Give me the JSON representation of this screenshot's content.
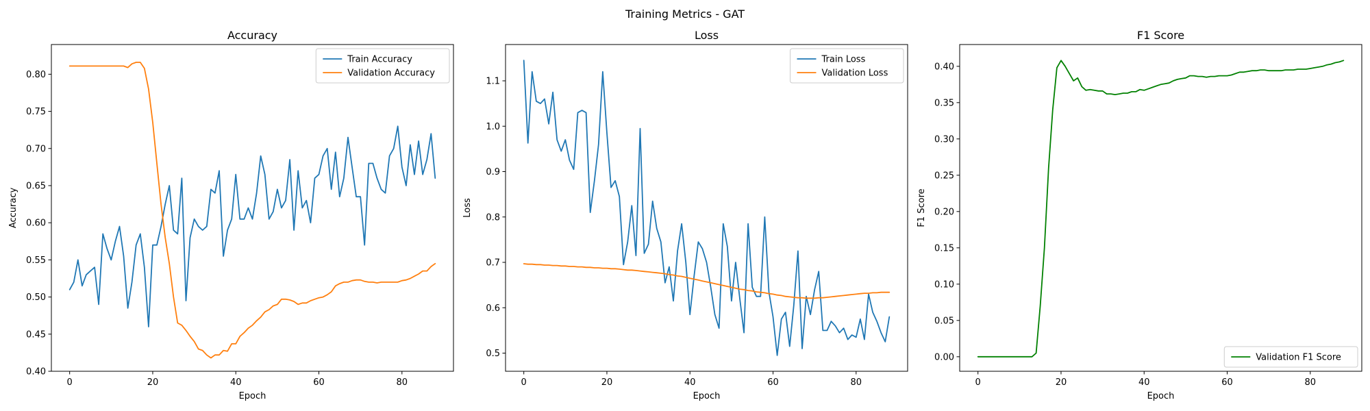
{
  "figure": {
    "title": "Training Metrics - GAT"
  },
  "chart_data": [
    {
      "type": "line",
      "title": "Accuracy",
      "xlabel": "Epoch",
      "ylabel": "Accuracy",
      "xlim": [
        -4.4,
        92.4
      ],
      "ylim": [
        0.4,
        0.84
      ],
      "xticks": [
        0,
        20,
        40,
        60,
        80
      ],
      "yticks": [
        0.4,
        0.45,
        0.5,
        0.55,
        0.6,
        0.65,
        0.7,
        0.75,
        0.8
      ],
      "ytick_decimals": 2,
      "legend_loc": "upper right",
      "series": [
        {
          "name": "Train Accuracy",
          "color": "#1f77b4",
          "x": [
            0,
            1,
            2,
            3,
            4,
            5,
            6,
            7,
            8,
            9,
            10,
            11,
            12,
            13,
            14,
            15,
            16,
            17,
            18,
            19,
            20,
            21,
            22,
            23,
            24,
            25,
            26,
            27,
            28,
            29,
            30,
            31,
            32,
            33,
            34,
            35,
            36,
            37,
            38,
            39,
            40,
            41,
            42,
            43,
            44,
            45,
            46,
            47,
            48,
            49,
            50,
            51,
            52,
            53,
            54,
            55,
            56,
            57,
            58,
            59,
            60,
            61,
            62,
            63,
            64,
            65,
            66,
            67,
            68,
            69,
            70,
            71,
            72,
            73,
            74,
            75,
            76,
            77,
            78,
            79,
            80,
            81,
            82,
            83,
            84,
            85,
            86,
            87,
            88
          ],
          "values": [
            0.51,
            0.52,
            0.55,
            0.515,
            0.53,
            0.535,
            0.54,
            0.49,
            0.585,
            0.565,
            0.55,
            0.575,
            0.595,
            0.555,
            0.485,
            0.52,
            0.57,
            0.585,
            0.54,
            0.46,
            0.57,
            0.57,
            0.595,
            0.625,
            0.65,
            0.59,
            0.585,
            0.66,
            0.495,
            0.58,
            0.605,
            0.595,
            0.59,
            0.595,
            0.645,
            0.64,
            0.67,
            0.555,
            0.59,
            0.605,
            0.665,
            0.605,
            0.605,
            0.62,
            0.605,
            0.64,
            0.69,
            0.665,
            0.605,
            0.615,
            0.645,
            0.62,
            0.63,
            0.685,
            0.59,
            0.67,
            0.62,
            0.63,
            0.6,
            0.66,
            0.665,
            0.69,
            0.7,
            0.645,
            0.695,
            0.635,
            0.66,
            0.715,
            0.675,
            0.635,
            0.635,
            0.57,
            0.68,
            0.68,
            0.66,
            0.645,
            0.64,
            0.69,
            0.7,
            0.73,
            0.675,
            0.65,
            0.705,
            0.665,
            0.71,
            0.665,
            0.685,
            0.72,
            0.66
          ]
        },
        {
          "name": "Validation Accuracy",
          "color": "#ff7f0e",
          "x": [
            0,
            1,
            2,
            3,
            4,
            5,
            6,
            7,
            8,
            9,
            10,
            11,
            12,
            13,
            14,
            15,
            16,
            17,
            18,
            19,
            20,
            21,
            22,
            23,
            24,
            25,
            26,
            27,
            28,
            29,
            30,
            31,
            32,
            33,
            34,
            35,
            36,
            37,
            38,
            39,
            40,
            41,
            42,
            43,
            44,
            45,
            46,
            47,
            48,
            49,
            50,
            51,
            52,
            53,
            54,
            55,
            56,
            57,
            58,
            59,
            60,
            61,
            62,
            63,
            64,
            65,
            66,
            67,
            68,
            69,
            70,
            71,
            72,
            73,
            74,
            75,
            76,
            77,
            78,
            79,
            80,
            81,
            82,
            83,
            84,
            85,
            86,
            87,
            88
          ],
          "values": [
            0.811,
            0.811,
            0.811,
            0.811,
            0.811,
            0.811,
            0.811,
            0.811,
            0.811,
            0.811,
            0.811,
            0.811,
            0.811,
            0.811,
            0.809,
            0.814,
            0.816,
            0.816,
            0.808,
            0.78,
            0.735,
            0.68,
            0.625,
            0.58,
            0.545,
            0.5,
            0.465,
            0.462,
            0.455,
            0.447,
            0.44,
            0.43,
            0.428,
            0.422,
            0.418,
            0.422,
            0.422,
            0.428,
            0.427,
            0.437,
            0.437,
            0.447,
            0.452,
            0.458,
            0.462,
            0.468,
            0.473,
            0.48,
            0.483,
            0.488,
            0.49,
            0.497,
            0.497,
            0.496,
            0.494,
            0.49,
            0.492,
            0.492,
            0.495,
            0.497,
            0.499,
            0.5,
            0.503,
            0.507,
            0.515,
            0.518,
            0.52,
            0.52,
            0.522,
            0.523,
            0.523,
            0.521,
            0.52,
            0.52,
            0.519,
            0.52,
            0.52,
            0.52,
            0.52,
            0.52,
            0.522,
            0.523,
            0.525,
            0.528,
            0.531,
            0.535,
            0.535,
            0.541,
            0.545
          ]
        }
      ]
    },
    {
      "type": "line",
      "title": "Loss",
      "xlabel": "Epoch",
      "ylabel": "Loss",
      "xlim": [
        -4.4,
        92.4
      ],
      "ylim": [
        0.46,
        1.18
      ],
      "xticks": [
        0,
        20,
        40,
        60,
        80
      ],
      "yticks": [
        0.5,
        0.6,
        0.7,
        0.8,
        0.9,
        1.0,
        1.1
      ],
      "ytick_decimals": 1,
      "legend_loc": "upper right",
      "series": [
        {
          "name": "Train Loss",
          "color": "#1f77b4",
          "x": [
            0,
            1,
            2,
            3,
            4,
            5,
            6,
            7,
            8,
            9,
            10,
            11,
            12,
            13,
            14,
            15,
            16,
            17,
            18,
            19,
            20,
            21,
            22,
            23,
            24,
            25,
            26,
            27,
            28,
            29,
            30,
            31,
            32,
            33,
            34,
            35,
            36,
            37,
            38,
            39,
            40,
            41,
            42,
            43,
            44,
            45,
            46,
            47,
            48,
            49,
            50,
            51,
            52,
            53,
            54,
            55,
            56,
            57,
            58,
            59,
            60,
            61,
            62,
            63,
            64,
            65,
            66,
            67,
            68,
            69,
            70,
            71,
            72,
            73,
            74,
            75,
            76,
            77,
            78,
            79,
            80,
            81,
            82,
            83,
            84,
            85,
            86,
            87,
            88
          ],
          "values": [
            1.145,
            0.963,
            1.12,
            1.055,
            1.05,
            1.06,
            1.005,
            1.075,
            0.97,
            0.945,
            0.97,
            0.925,
            0.905,
            1.03,
            1.035,
            1.03,
            0.81,
            0.88,
            0.96,
            1.12,
            0.985,
            0.865,
            0.88,
            0.845,
            0.695,
            0.745,
            0.825,
            0.715,
            0.995,
            0.72,
            0.74,
            0.835,
            0.775,
            0.745,
            0.655,
            0.69,
            0.615,
            0.725,
            0.785,
            0.7,
            0.585,
            0.67,
            0.745,
            0.73,
            0.7,
            0.645,
            0.585,
            0.555,
            0.785,
            0.735,
            0.615,
            0.7,
            0.62,
            0.545,
            0.785,
            0.645,
            0.625,
            0.625,
            0.8,
            0.635,
            0.58,
            0.495,
            0.575,
            0.59,
            0.515,
            0.605,
            0.725,
            0.51,
            0.625,
            0.585,
            0.64,
            0.68,
            0.55,
            0.55,
            0.57,
            0.56,
            0.545,
            0.555,
            0.53,
            0.54,
            0.535,
            0.575,
            0.53,
            0.63,
            0.59,
            0.57,
            0.545,
            0.525,
            0.58
          ]
        },
        {
          "name": "Validation Loss",
          "color": "#ff7f0e",
          "x": [
            0,
            1,
            2,
            3,
            4,
            5,
            6,
            7,
            8,
            9,
            10,
            11,
            12,
            13,
            14,
            15,
            16,
            17,
            18,
            19,
            20,
            21,
            22,
            23,
            24,
            25,
            26,
            27,
            28,
            29,
            30,
            31,
            32,
            33,
            34,
            35,
            36,
            37,
            38,
            39,
            40,
            41,
            42,
            43,
            44,
            45,
            46,
            47,
            48,
            49,
            50,
            51,
            52,
            53,
            54,
            55,
            56,
            57,
            58,
            59,
            60,
            61,
            62,
            63,
            64,
            65,
            66,
            67,
            68,
            69,
            70,
            71,
            72,
            73,
            74,
            75,
            76,
            77,
            78,
            79,
            80,
            81,
            82,
            83,
            84,
            85,
            86,
            87,
            88
          ],
          "values": [
            0.697,
            0.696,
            0.696,
            0.695,
            0.695,
            0.694,
            0.694,
            0.693,
            0.693,
            0.692,
            0.692,
            0.691,
            0.691,
            0.69,
            0.69,
            0.689,
            0.689,
            0.688,
            0.688,
            0.687,
            0.687,
            0.686,
            0.686,
            0.685,
            0.684,
            0.683,
            0.683,
            0.682,
            0.681,
            0.68,
            0.679,
            0.678,
            0.677,
            0.676,
            0.675,
            0.673,
            0.672,
            0.67,
            0.669,
            0.667,
            0.665,
            0.663,
            0.661,
            0.659,
            0.657,
            0.655,
            0.653,
            0.651,
            0.649,
            0.647,
            0.645,
            0.643,
            0.641,
            0.64,
            0.638,
            0.637,
            0.635,
            0.634,
            0.633,
            0.631,
            0.63,
            0.628,
            0.627,
            0.625,
            0.624,
            0.623,
            0.622,
            0.622,
            0.621,
            0.621,
            0.621,
            0.622,
            0.622,
            0.623,
            0.624,
            0.625,
            0.626,
            0.627,
            0.628,
            0.629,
            0.63,
            0.631,
            0.632,
            0.632,
            0.633,
            0.633,
            0.634,
            0.634,
            0.634
          ]
        }
      ]
    },
    {
      "type": "line",
      "title": "F1 Score",
      "xlabel": "Epoch",
      "ylabel": "F1 Score",
      "xlim": [
        -4.4,
        92.4
      ],
      "ylim": [
        -0.02,
        0.43
      ],
      "xticks": [
        0,
        20,
        40,
        60,
        80
      ],
      "yticks": [
        0.0,
        0.05,
        0.1,
        0.15,
        0.2,
        0.25,
        0.3,
        0.35,
        0.4
      ],
      "ytick_decimals": 2,
      "legend_loc": "lower right",
      "series": [
        {
          "name": "Validation F1 Score",
          "color": "#008000",
          "x": [
            0,
            1,
            2,
            3,
            4,
            5,
            6,
            7,
            8,
            9,
            10,
            11,
            12,
            13,
            14,
            15,
            16,
            17,
            18,
            19,
            20,
            21,
            22,
            23,
            24,
            25,
            26,
            27,
            28,
            29,
            30,
            31,
            32,
            33,
            34,
            35,
            36,
            37,
            38,
            39,
            40,
            41,
            42,
            43,
            44,
            45,
            46,
            47,
            48,
            49,
            50,
            51,
            52,
            53,
            54,
            55,
            56,
            57,
            58,
            59,
            60,
            61,
            62,
            63,
            64,
            65,
            66,
            67,
            68,
            69,
            70,
            71,
            72,
            73,
            74,
            75,
            76,
            77,
            78,
            79,
            80,
            81,
            82,
            83,
            84,
            85,
            86,
            87,
            88
          ],
          "values": [
            0,
            0,
            0,
            0,
            0,
            0,
            0,
            0,
            0,
            0,
            0,
            0,
            0,
            0,
            0.005,
            0.07,
            0.15,
            0.26,
            0.34,
            0.398,
            0.408,
            0.4,
            0.39,
            0.38,
            0.384,
            0.372,
            0.367,
            0.368,
            0.367,
            0.366,
            0.366,
            0.362,
            0.362,
            0.361,
            0.362,
            0.363,
            0.363,
            0.365,
            0.365,
            0.368,
            0.367,
            0.369,
            0.371,
            0.373,
            0.375,
            0.376,
            0.377,
            0.38,
            0.382,
            0.383,
            0.384,
            0.387,
            0.387,
            0.386,
            0.386,
            0.385,
            0.386,
            0.386,
            0.387,
            0.387,
            0.387,
            0.388,
            0.39,
            0.392,
            0.392,
            0.393,
            0.394,
            0.394,
            0.395,
            0.395,
            0.394,
            0.394,
            0.394,
            0.394,
            0.395,
            0.395,
            0.395,
            0.396,
            0.396,
            0.396,
            0.397,
            0.398,
            0.399,
            0.4,
            0.402,
            0.403,
            0.405,
            0.406,
            0.408
          ]
        }
      ]
    }
  ]
}
